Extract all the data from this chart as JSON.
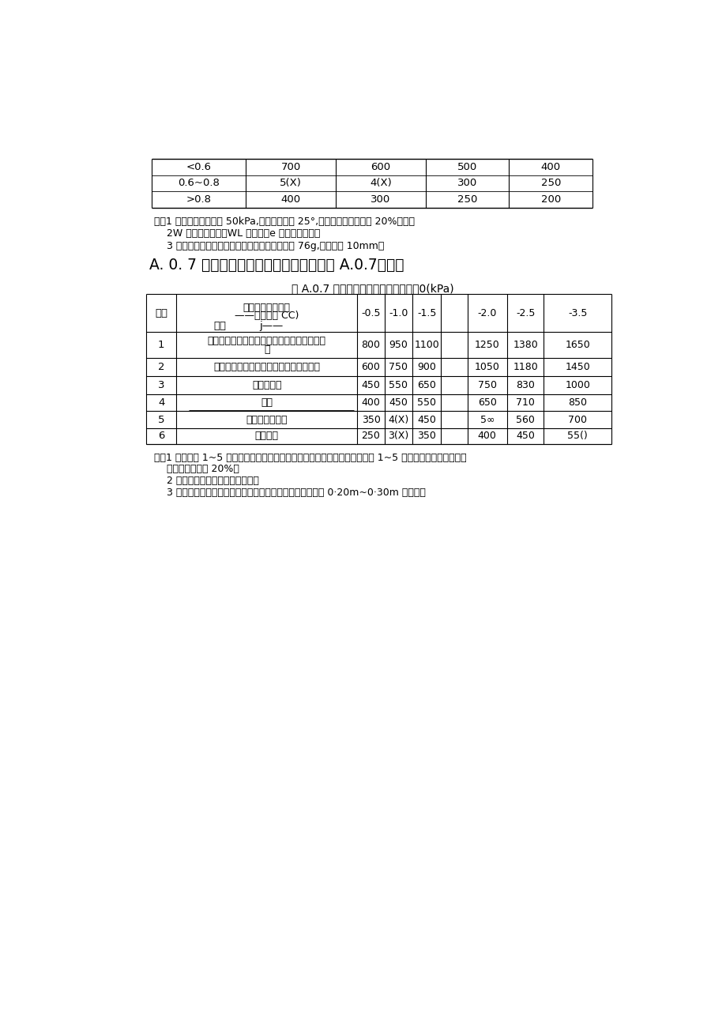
{
  "background_color": "#ffffff",
  "top_table": {
    "rows": [
      [
        "<0.6",
        "700",
        "600",
        "500",
        "400"
      ],
      [
        "0.6~0.8",
        "5(X)",
        "4(X)",
        "300",
        "250"
      ],
      [
        ">0.8",
        "400",
        "300",
        "250",
        "200"
      ]
    ]
  },
  "notes_top": [
    "注：1 老黄土黏聚力小于 50kPa,内摩擦角小于 25°,表中数值应适当降低 20%左右。",
    "    2W 为天然含水率，WL 为液限，e 为天然孔隙比。",
    "    3 液限含水率试验采用圆锥仪法，圆锥仪总质量 76g,入土深度 10mm。"
  ],
  "section_title": "A. 0. 7 多年冻土地基的基本承载力可按表 A.0.7采用。",
  "table_title": "表 A.0.7 多年冻土地基的基本承载力。0(kPa)",
  "main_table": {
    "rows": [
      {
        "num": "1",
        "name_line1": "块石土、卵石土、碎石土、粗圆砂土、粗角砂",
        "name_line2": "土",
        "vals": [
          "800",
          "950",
          "1100",
          "1250",
          "1380",
          "1650"
        ]
      },
      {
        "num": "2",
        "name_line1": "细圆砂土、细角砂土、砂砂、粗砂、中砂",
        "name_line2": "",
        "vals": [
          "600",
          "750",
          "900",
          "1050",
          "1180",
          "1450"
        ]
      },
      {
        "num": "3",
        "name_line1": "细砂、粉砂",
        "name_line2": "",
        "vals": [
          "450",
          "550",
          "650",
          "750",
          "830",
          "1000"
        ]
      },
      {
        "num": "4",
        "name_line1": "粉土",
        "name_line2": "",
        "vals": [
          "400",
          "450",
          "550",
          "650",
          "710",
          "850"
        ]
      },
      {
        "num": "5",
        "name_line1": "粉质黏土、黏土",
        "name_line2": "",
        "vals": [
          "350",
          "4(X)",
          "450",
          "5∞",
          "560",
          "700"
        ]
      },
      {
        "num": "6",
        "name_line1": "饱冰冻土",
        "name_line2": "",
        "vals": [
          "250",
          "3(X)",
          "350",
          "400",
          "450",
          "55()"
        ]
      }
    ]
  },
  "notes_bottom": [
    "注：1 本表序号 1~5 类地基的基本承载力适合于少冰冻土、多冰冻上，当序号 1~5 类的地基为富冰冻土时，",
    "    表列数值应降低 20%。",
    "    2 含土冰层的承载力应实测确定。",
    "    3 基础置于饱冰冻土的土层时，基础底面应敏设厚度不小于 0·20m~0·30m 的砂层。"
  ]
}
